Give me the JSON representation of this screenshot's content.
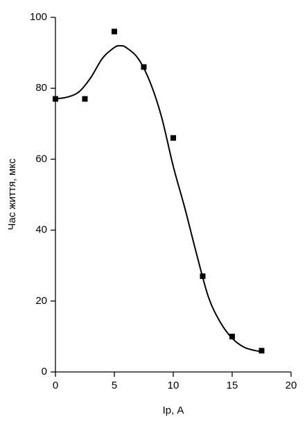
{
  "chart_data": {
    "type": "scatter",
    "x_label": "Ір, А",
    "y_label": "Час життя, мкс",
    "x": [
      0,
      2.5,
      5,
      7.5,
      10,
      12.5,
      15,
      17.5
    ],
    "values": [
      77,
      77,
      96,
      86,
      66,
      27,
      10,
      6
    ],
    "color": "#000000",
    "fit": {
      "x": [
        0,
        1,
        2,
        3,
        4,
        5,
        5.5,
        6,
        7,
        8,
        9,
        10,
        11,
        12,
        13,
        14,
        15,
        16,
        17,
        17.5
      ],
      "values": [
        77,
        77.5,
        79,
        83,
        88.5,
        91.5,
        92,
        91.5,
        88.5,
        82,
        72,
        58,
        46,
        33,
        21,
        14,
        9.5,
        7,
        6,
        5.8
      ]
    },
    "xlim": [
      0,
      20
    ],
    "xticks": [
      0,
      5,
      10,
      15,
      20
    ],
    "ylim": [
      0,
      100
    ],
    "yticks": [
      0,
      20,
      40,
      60,
      80,
      100
    ],
    "grid": false
  }
}
